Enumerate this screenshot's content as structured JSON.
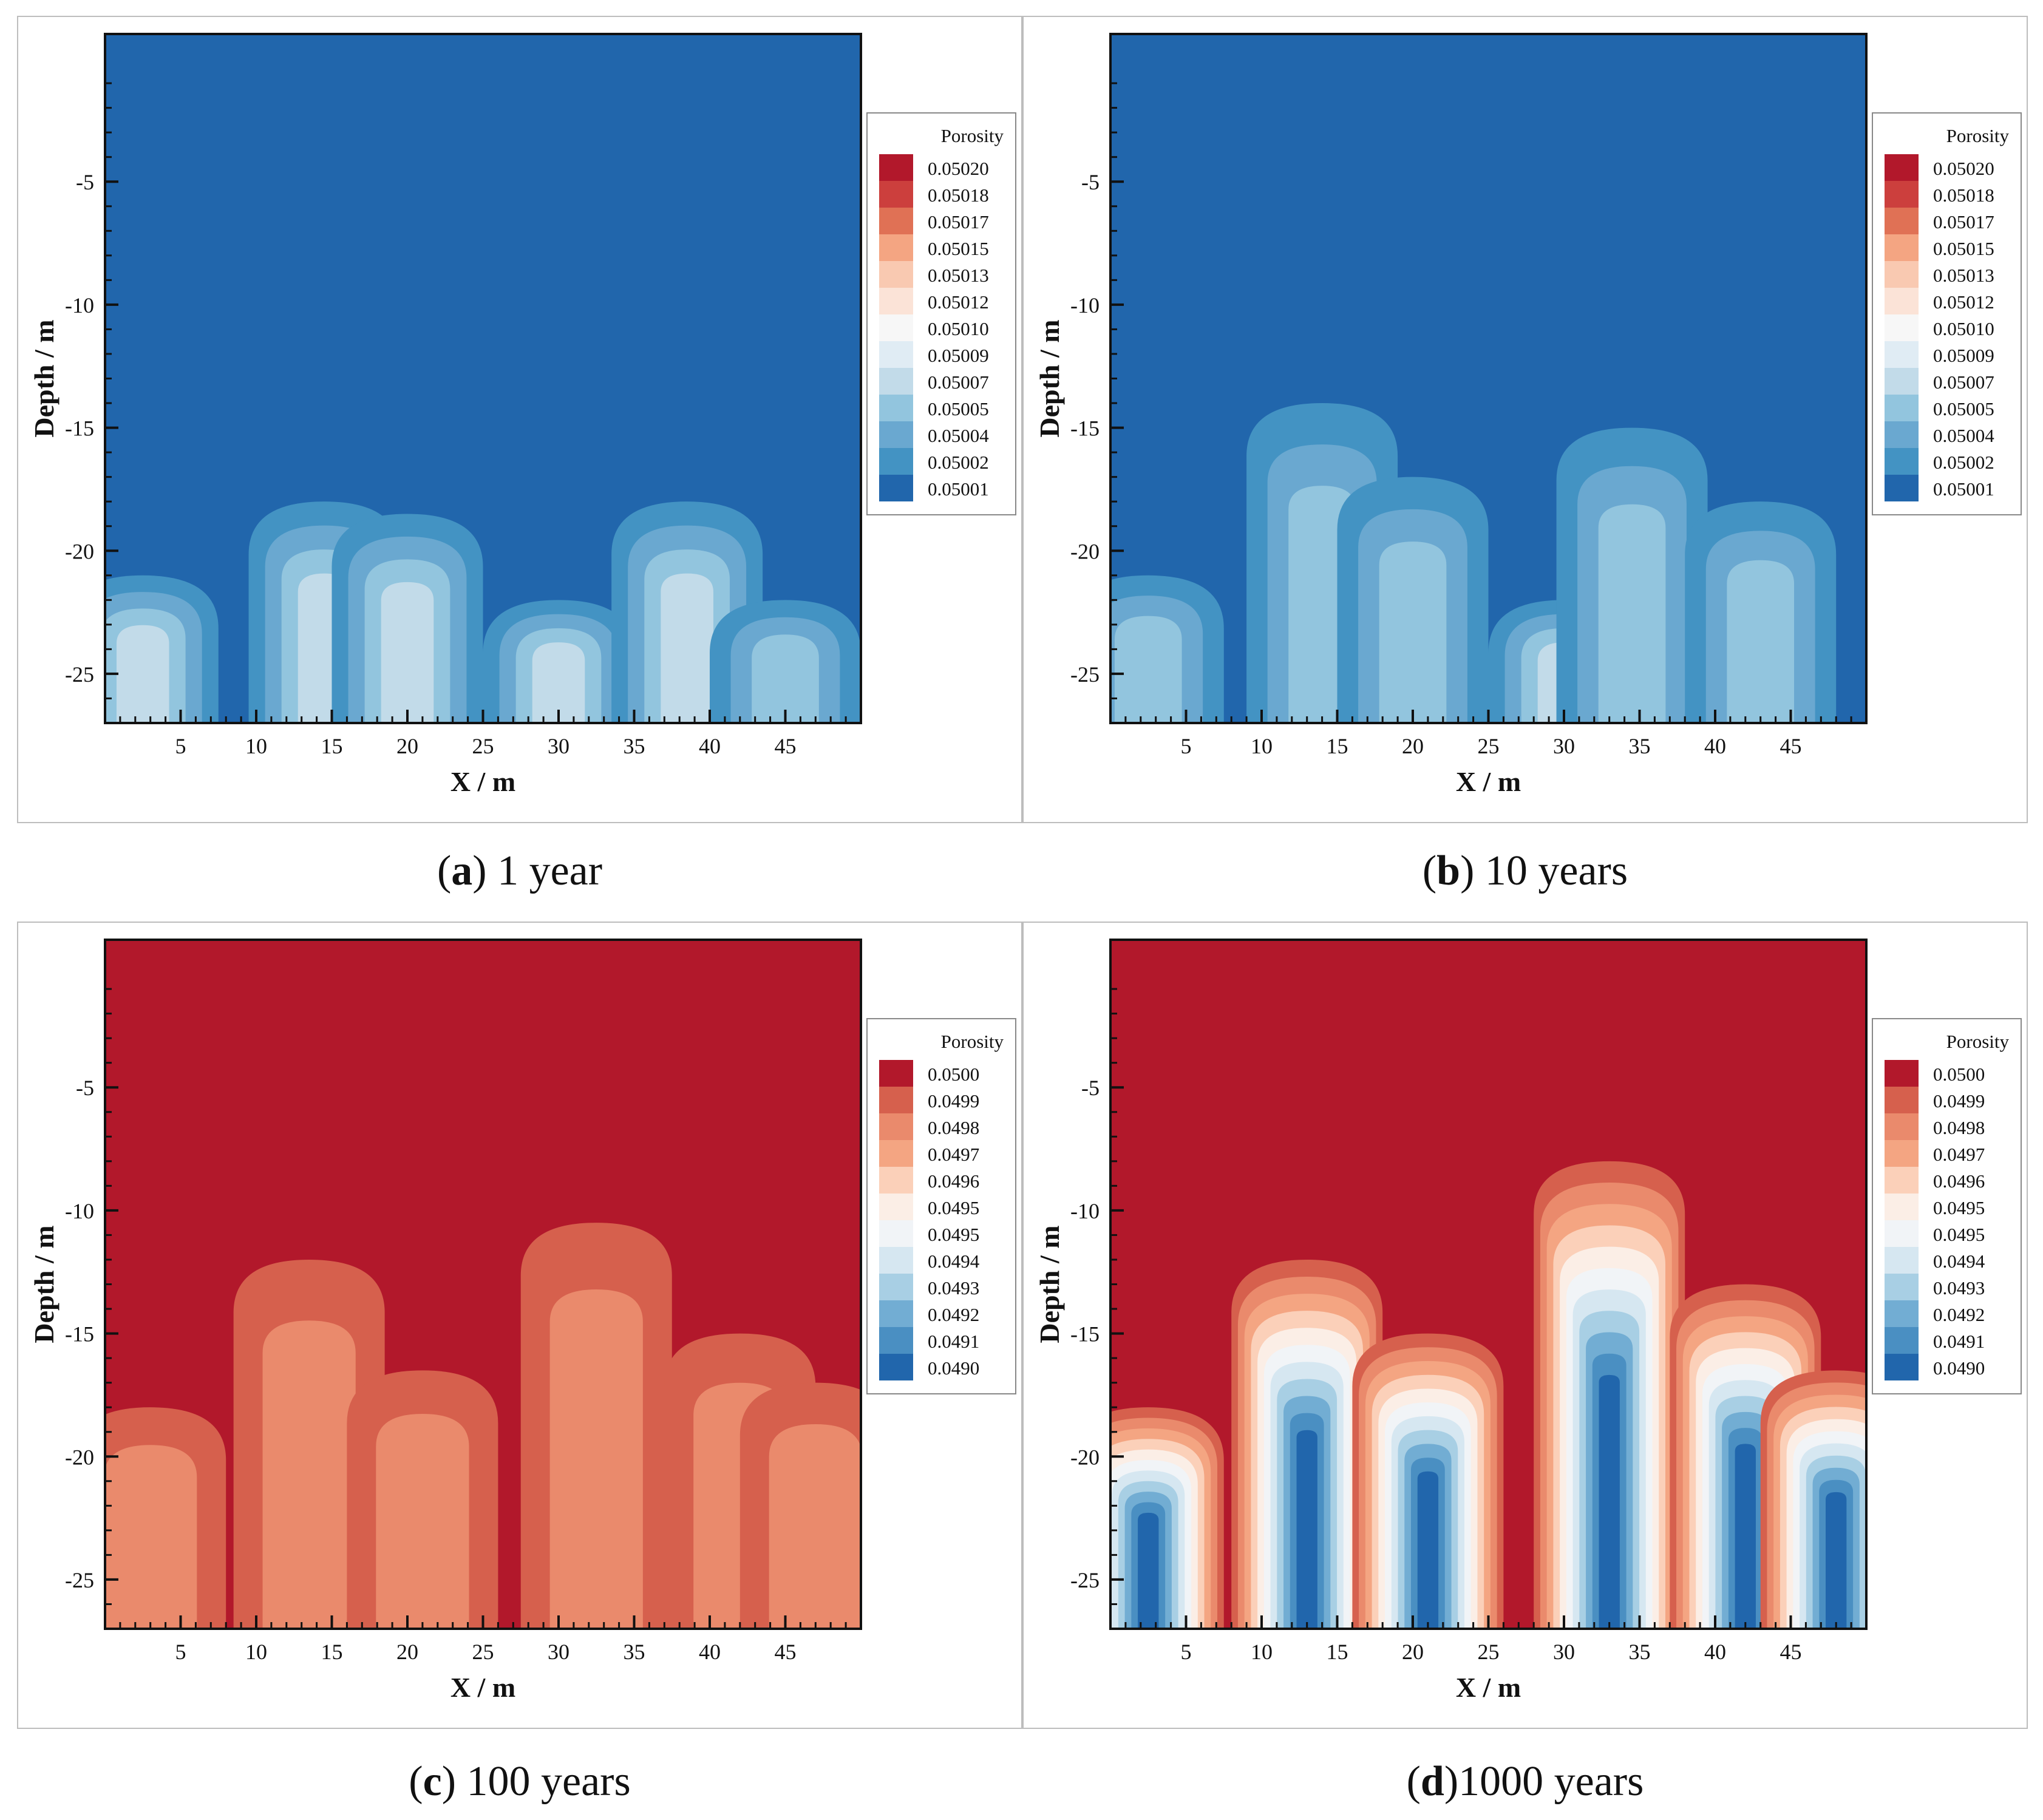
{
  "figure": {
    "panels": [
      {
        "letter": "a",
        "caption": ") 1 year"
      },
      {
        "letter": "b",
        "caption": ") 10 years"
      },
      {
        "letter": "c",
        "caption": ") 100 years"
      },
      {
        "letter": "d",
        "caption": ")1000 years"
      }
    ]
  },
  "colors": {
    "blue_low": "#2166ac",
    "blue_mid": "#4393c3",
    "blue_light": "#92c5de",
    "red_high": "#b2182b",
    "red_mid": "#d6604d",
    "orange": "#f4a582"
  },
  "chart_data": [
    {
      "type": "heatmap",
      "title": "(a) 1 year",
      "xlabel": "X / m",
      "ylabel": "Depth / m",
      "xlim": [
        0,
        50
      ],
      "ylim": [
        -27,
        1
      ],
      "xticks": [
        "5",
        "10",
        "15",
        "20",
        "25",
        "30",
        "35",
        "40",
        "45"
      ],
      "yticks": [
        "-5",
        "-10",
        "-15",
        "-20",
        "-25"
      ],
      "legend_title": "Porosity",
      "levels": [
        "0.05020",
        "0.05018",
        "0.05017",
        "0.05015",
        "0.05013",
        "0.05012",
        "0.05010",
        "0.05009",
        "0.05007",
        "0.05005",
        "0.05004",
        "0.05002",
        "0.05001"
      ],
      "level_colors": [
        "#b2182b",
        "#cc3f3d",
        "#e07155",
        "#f4a582",
        "#f9c9b1",
        "#fbe3d7",
        "#f7f7f7",
        "#e0ecf4",
        "#c2dbe9",
        "#92c5de",
        "#6aa8d0",
        "#4393c3",
        "#2166ac"
      ],
      "background_level": "0.05001",
      "plumes": [
        {
          "x": 2.5,
          "top_depth": -21,
          "level": "0.05007"
        },
        {
          "x": 14.5,
          "top_depth": -18,
          "level": "0.05007"
        },
        {
          "x": 20,
          "top_depth": -18.5,
          "level": "0.05007"
        },
        {
          "x": 30,
          "top_depth": -22,
          "level": "0.05007"
        },
        {
          "x": 38.5,
          "top_depth": -18,
          "level": "0.05007"
        },
        {
          "x": 45,
          "top_depth": -22,
          "level": "0.05005"
        }
      ]
    },
    {
      "type": "heatmap",
      "title": "(b) 10 years",
      "xlabel": "X / m",
      "ylabel": "Depth / m",
      "xlim": [
        0,
        50
      ],
      "ylim": [
        -27,
        1
      ],
      "xticks": [
        "5",
        "10",
        "15",
        "20",
        "25",
        "30",
        "35",
        "40",
        "45"
      ],
      "yticks": [
        "-5",
        "-10",
        "-15",
        "-20",
        "-25"
      ],
      "legend_title": "Porosity",
      "levels": [
        "0.05020",
        "0.05018",
        "0.05017",
        "0.05015",
        "0.05013",
        "0.05012",
        "0.05010",
        "0.05009",
        "0.05007",
        "0.05005",
        "0.05004",
        "0.05002",
        "0.05001"
      ],
      "level_colors": [
        "#b2182b",
        "#cc3f3d",
        "#e07155",
        "#f4a582",
        "#f9c9b1",
        "#fbe3d7",
        "#f7f7f7",
        "#e0ecf4",
        "#c2dbe9",
        "#92c5de",
        "#6aa8d0",
        "#4393c3",
        "#2166ac"
      ],
      "background_level": "0.05001",
      "plumes": [
        {
          "x": 2.5,
          "top_depth": -21,
          "level": "0.05005"
        },
        {
          "x": 14,
          "top_depth": -14,
          "level": "0.05005"
        },
        {
          "x": 20,
          "top_depth": -17,
          "level": "0.05005"
        },
        {
          "x": 30,
          "top_depth": -22,
          "level": "0.05007"
        },
        {
          "x": 34.5,
          "top_depth": -15,
          "level": "0.05005"
        },
        {
          "x": 43,
          "top_depth": -18,
          "level": "0.05005"
        }
      ]
    },
    {
      "type": "heatmap",
      "title": "(c) 100 years",
      "xlabel": "X / m",
      "ylabel": "Depth / m",
      "xlim": [
        0,
        50
      ],
      "ylim": [
        -27,
        1
      ],
      "xticks": [
        "5",
        "10",
        "15",
        "20",
        "25",
        "30",
        "35",
        "40",
        "45"
      ],
      "yticks": [
        "-5",
        "-10",
        "-15",
        "-20",
        "-25"
      ],
      "legend_title": "Porosity",
      "levels": [
        "0.0500",
        "0.0499",
        "0.0498",
        "0.0497",
        "0.0496",
        "0.0495",
        "0.0495",
        "0.0494",
        "0.0493",
        "0.0492",
        "0.0491",
        "0.0490"
      ],
      "level_colors": [
        "#b2182b",
        "#d6604d",
        "#ea8a6c",
        "#f4a582",
        "#fbd0b9",
        "#fbeee6",
        "#f1f4f7",
        "#d6e7f1",
        "#a8cfe4",
        "#72add3",
        "#4a8fc2",
        "#2166ac"
      ],
      "background_level": "0.0500",
      "plumes": [
        {
          "x": 3,
          "top_depth": -18,
          "level": "0.0498"
        },
        {
          "x": 13.5,
          "top_depth": -12,
          "level": "0.0498"
        },
        {
          "x": 21,
          "top_depth": -16.5,
          "level": "0.0498"
        },
        {
          "x": 32.5,
          "top_depth": -10.5,
          "level": "0.0498"
        },
        {
          "x": 42,
          "top_depth": -15,
          "level": "0.0498"
        },
        {
          "x": 47,
          "top_depth": -17,
          "level": "0.0498"
        }
      ]
    },
    {
      "type": "heatmap",
      "title": "(d)1000 years",
      "xlabel": "X / m",
      "ylabel": "Depth / m",
      "xlim": [
        0,
        50
      ],
      "ylim": [
        -27,
        1
      ],
      "xticks": [
        "5",
        "10",
        "15",
        "20",
        "25",
        "30",
        "35",
        "40",
        "45"
      ],
      "yticks": [
        "-5",
        "-10",
        "-15",
        "-20",
        "-25"
      ],
      "legend_title": "Porosity",
      "levels": [
        "0.0500",
        "0.0499",
        "0.0498",
        "0.0497",
        "0.0496",
        "0.0495",
        "0.0495",
        "0.0494",
        "0.0493",
        "0.0492",
        "0.0491",
        "0.0490"
      ],
      "level_colors": [
        "#b2182b",
        "#d6604d",
        "#ea8a6c",
        "#f4a582",
        "#fbd0b9",
        "#fbeee6",
        "#f1f4f7",
        "#d6e7f1",
        "#a8cfe4",
        "#72add3",
        "#4a8fc2",
        "#2166ac"
      ],
      "background_level": "0.0500",
      "plumes": [
        {
          "x": 2.5,
          "top_depth": -18,
          "level": "0.0490"
        },
        {
          "x": 13,
          "top_depth": -12,
          "level": "0.0490"
        },
        {
          "x": 21,
          "top_depth": -15,
          "level": "0.0490"
        },
        {
          "x": 33,
          "top_depth": -8,
          "level": "0.0490"
        },
        {
          "x": 42,
          "top_depth": -13,
          "level": "0.0490"
        },
        {
          "x": 48,
          "top_depth": -16.5,
          "level": "0.0490"
        }
      ]
    }
  ]
}
